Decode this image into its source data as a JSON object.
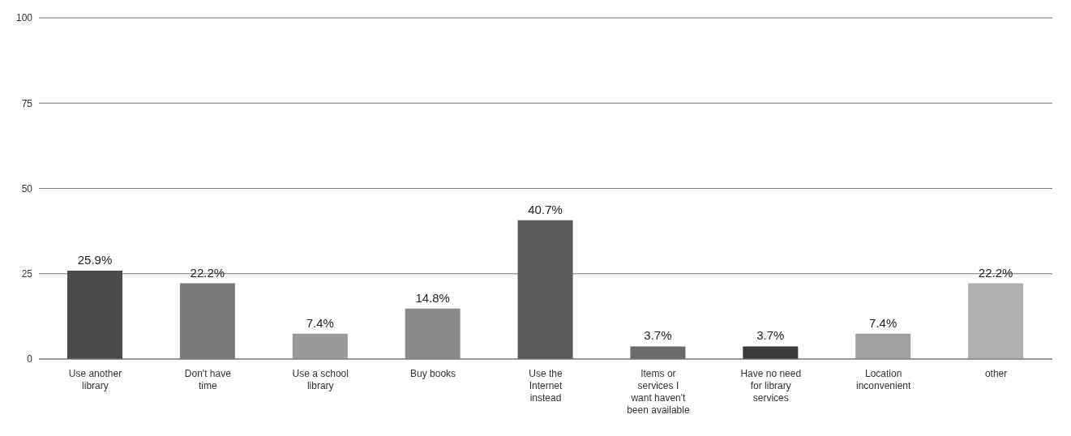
{
  "chart_data": {
    "type": "bar",
    "categories": [
      "Use another library",
      "Don't have time",
      "Use a school library",
      "Buy books",
      "Use the Internet instead",
      "Items or services I want haven't been available",
      "Have no need for library services",
      "Location inconvenient",
      "other"
    ],
    "values": [
      25.9,
      22.2,
      7.4,
      14.8,
      40.7,
      3.7,
      3.7,
      7.4,
      22.2
    ],
    "colors": [
      "#4a4a4a",
      "#7a7a7a",
      "#9a9a9a",
      "#8a8a8a",
      "#5a5a5a",
      "#6a6a6a",
      "#3a3a3a",
      "#a0a0a0",
      "#b0b0b0"
    ],
    "value_labels": [
      "25.9%",
      "22.2%",
      "7.4%",
      "14.8%",
      "40.7%",
      "3.7%",
      "3.7%",
      "7.4%",
      "22.2%"
    ],
    "ylim": [
      0,
      100
    ],
    "yticks": [
      0,
      25,
      50,
      75,
      100
    ],
    "grid": "y"
  }
}
